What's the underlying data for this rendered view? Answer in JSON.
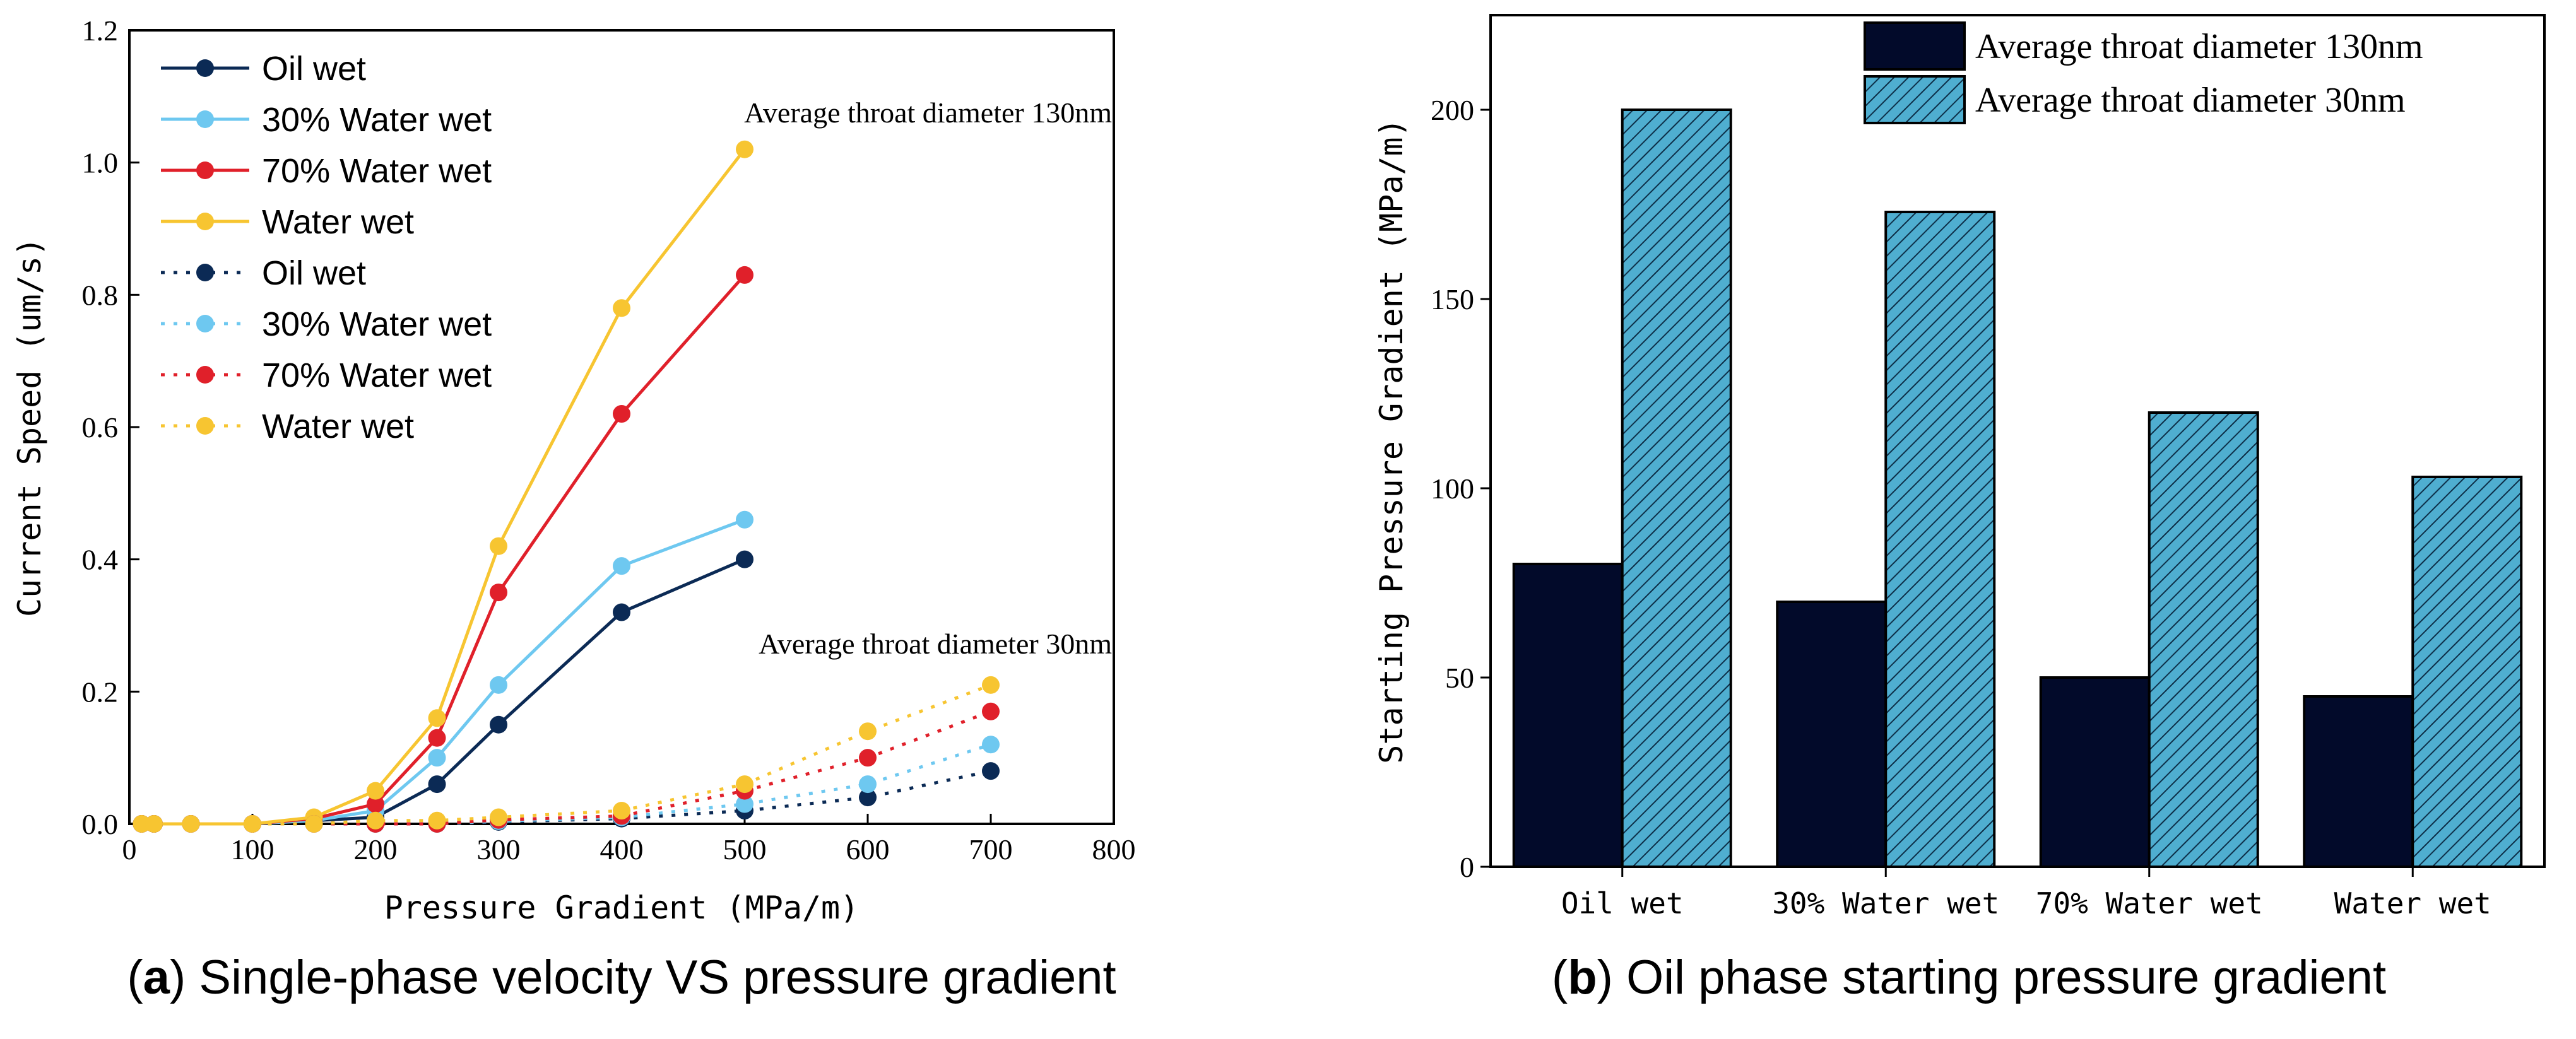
{
  "chart_data": [
    {
      "type": "line",
      "panel": "a",
      "caption_letter": "a",
      "caption_text": " Single-phase velocity VS pressure gradient",
      "xlabel": "Pressure Gradient (MPa/m)",
      "ylabel": "Current Speed (um/s)",
      "xlim": [
        0,
        800
      ],
      "ylim": [
        0,
        1.2
      ],
      "xticks": [
        "0",
        "100",
        "200",
        "300",
        "400",
        "500",
        "600",
        "700",
        "800"
      ],
      "yticks": [
        "0.0",
        "0.2",
        "0.4",
        "0.6",
        "0.8",
        "1.0",
        "1.2"
      ],
      "annotations": [
        "Average throat diameter 130nm",
        "Average throat diameter 30nm"
      ],
      "series": [
        {
          "name": "Oil wet",
          "color": "#0b2a55",
          "style": "solid",
          "group": "130nm",
          "x": [
            10,
            20,
            50,
            100,
            150,
            200,
            250,
            300,
            400,
            500
          ],
          "y": [
            0,
            0,
            0,
            0,
            0.005,
            0.01,
            0.06,
            0.15,
            0.32,
            0.4
          ]
        },
        {
          "name": "30% Water wet",
          "color": "#6ec8f0",
          "style": "solid",
          "group": "130nm",
          "x": [
            10,
            20,
            50,
            100,
            150,
            200,
            250,
            300,
            400,
            500
          ],
          "y": [
            0,
            0,
            0,
            0,
            0.005,
            0.02,
            0.1,
            0.21,
            0.39,
            0.46
          ]
        },
        {
          "name": "70% Water wet",
          "color": "#e0202a",
          "style": "solid",
          "group": "130nm",
          "x": [
            10,
            20,
            50,
            100,
            150,
            200,
            250,
            300,
            400,
            500
          ],
          "y": [
            0,
            0,
            0,
            0,
            0.008,
            0.03,
            0.13,
            0.35,
            0.62,
            0.83
          ]
        },
        {
          "name": "Water wet",
          "color": "#f7c531",
          "style": "solid",
          "group": "130nm",
          "x": [
            10,
            20,
            50,
            100,
            150,
            200,
            250,
            300,
            400,
            500
          ],
          "y": [
            0,
            0,
            0,
            0,
            0.01,
            0.05,
            0.16,
            0.42,
            0.78,
            1.02
          ]
        },
        {
          "name": "Oil wet",
          "color": "#0b2a55",
          "style": "dotted",
          "group": "30nm",
          "x": [
            10,
            20,
            50,
            100,
            150,
            200,
            250,
            300,
            400,
            500,
            600,
            700
          ],
          "y": [
            0,
            0,
            0,
            0,
            0,
            0,
            0,
            0.003,
            0.008,
            0.02,
            0.04,
            0.08
          ]
        },
        {
          "name": "30% Water wet",
          "color": "#6ec8f0",
          "style": "dotted",
          "group": "30nm",
          "x": [
            10,
            20,
            50,
            100,
            150,
            200,
            250,
            300,
            400,
            500,
            600,
            700
          ],
          "y": [
            0,
            0,
            0,
            0,
            0,
            0,
            0,
            0.004,
            0.01,
            0.03,
            0.06,
            0.12
          ]
        },
        {
          "name": "70% Water wet",
          "color": "#e0202a",
          "style": "dotted",
          "group": "30nm",
          "x": [
            10,
            20,
            50,
            100,
            150,
            200,
            250,
            300,
            400,
            500,
            600,
            700
          ],
          "y": [
            0,
            0,
            0,
            0,
            0,
            0,
            0,
            0.006,
            0.012,
            0.05,
            0.1,
            0.17
          ]
        },
        {
          "name": "Water wet",
          "color": "#f7c531",
          "style": "dotted",
          "group": "30nm",
          "x": [
            10,
            20,
            50,
            100,
            150,
            200,
            250,
            300,
            400,
            500,
            600,
            700
          ],
          "y": [
            0,
            0,
            0,
            0,
            0,
            0.005,
            0.005,
            0.01,
            0.02,
            0.06,
            0.14,
            0.21
          ]
        }
      ]
    },
    {
      "type": "bar",
      "panel": "b",
      "caption_letter": "b",
      "caption_text": " Oil phase starting pressure gradient",
      "xlabel": "",
      "ylabel": "Starting Pressure Gradient (MPa/m)",
      "ylim": [
        0,
        225
      ],
      "yticks": [
        "0",
        "50",
        "100",
        "150",
        "200"
      ],
      "categories": [
        "Oil wet",
        "30% Water wet",
        "70% Water wet",
        "Water wet"
      ],
      "series": [
        {
          "name": "Average throat diameter 130nm",
          "color": "#020a2a",
          "hatch": false,
          "values": [
            80,
            70,
            50,
            45
          ]
        },
        {
          "name": "Average throat diameter 30nm",
          "color": "#4faed0",
          "hatch": true,
          "values": [
            200,
            173,
            120,
            103
          ]
        }
      ]
    }
  ]
}
